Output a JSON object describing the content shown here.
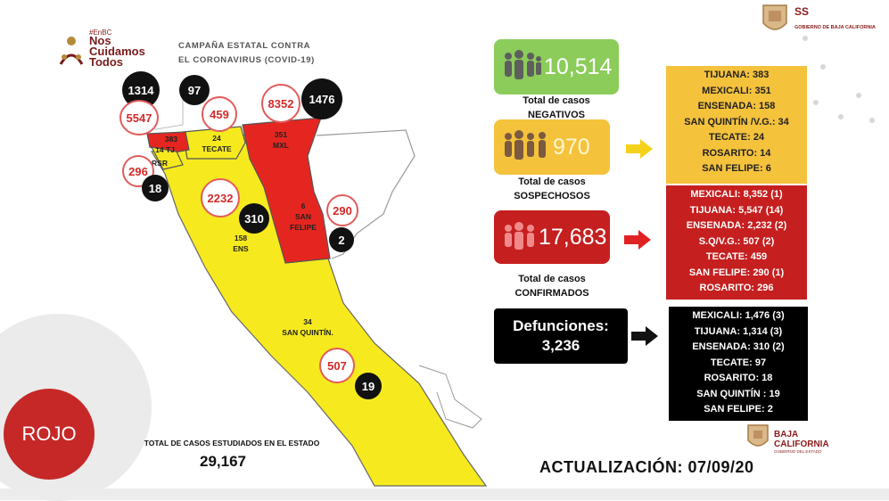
{
  "header": {
    "hashtag": "#EnBC",
    "brand_line1": "Nos",
    "brand_line2": "Cuidamos",
    "brand_line3": "Todos",
    "campaign_line1": "CAMPAÑA ESTATAL CONTRA",
    "campaign_line2": "EL CORONAVIRUS (COVID-19)",
    "ss_title": "SS",
    "ss_sub": "GOBIERNO DE BAJA CALIFORNIA"
  },
  "map": {
    "bubbles": {
      "tijuana_deaths": "1314",
      "tecate_deaths": "97",
      "tijuana_confirmed": "5547",
      "tecate_confirmed": "459",
      "mexicali_confirmed": "8352",
      "mexicali_deaths": "1476",
      "rosarito_confirmed": "296",
      "rosarito_deaths": "18",
      "ensenada_confirmed": "2232",
      "ensenada_deaths": "310",
      "sanfelipe_confirmed": "290",
      "sanfelipe_deaths": "2",
      "sanquintin_confirmed": "507",
      "sanquintin_deaths": "19"
    },
    "labels": {
      "tijuana_susp": "383",
      "tijuana_name": "14 TJ",
      "rosarito_name": "RSR",
      "tecate_susp": "24",
      "tecate_name": "TECATE",
      "mexicali_susp": "351",
      "mexicali_name": "MXL",
      "sanfelipe_susp": "6",
      "sanfelipe_name1": "SAN",
      "sanfelipe_name2": "FELIPE",
      "ensenada_susp": "158",
      "ensenada_name": "ENS",
      "sanquintin_susp": "34",
      "sanquintin_name": "SAN QUINTÍN."
    },
    "colors": {
      "yellow": "#f6ea1e",
      "red": "#e52620"
    }
  },
  "semaforo": "ROJO",
  "totals": {
    "label": "TOTAL DE CASOS ESTUDIADOS EN EL ESTADO",
    "value": "29,167"
  },
  "negativos": {
    "value": "10,514",
    "caption1": "Total de casos",
    "caption2": "NEGATIVOS",
    "color": "#8ccc5a"
  },
  "sospechosos": {
    "value": "970",
    "caption1": "Total de casos",
    "caption2": "SOSPECHOSOS",
    "color": "#f5c23c",
    "list": [
      "TIJUANA: 383",
      "MEXICALI: 351",
      "ENSENADA: 158",
      "SAN QUINTÍN /V.G.: 34",
      "TECATE: 24",
      "ROSARITO: 14",
      "SAN FELIPE: 6"
    ]
  },
  "confirmados": {
    "value": "17,683",
    "caption1": "Total de casos",
    "caption2": "CONFIRMADOS",
    "color": "#c61f1f",
    "list": [
      "MEXICALI: 8,352 (1)",
      "TIJUANA: 5,547 (14)",
      "ENSENADA: 2,232 (2)",
      "S.Q/V.G.: 507 (2)",
      "TECATE: 459",
      "SAN FELIPE: 290 (1)",
      "ROSARITO: 296"
    ]
  },
  "defunciones": {
    "label": "Defunciones:",
    "value": "3,236",
    "list": [
      "MEXICALI: 1,476 (3)",
      "TIJUANA: 1,314 (3)",
      "ENSENADA: 310 (2)",
      "TECATE: 97",
      "ROSARITO: 18",
      "SAN QUINTÍN : 19",
      "SAN FELIPE: 2"
    ]
  },
  "footer": {
    "update": "ACTUALIZACIÓN: 07/09/20",
    "bc_line1": "BAJA",
    "bc_line2": "CALIFORNIA",
    "bc_sub": "GOBIERNO DEL ESTADO"
  }
}
